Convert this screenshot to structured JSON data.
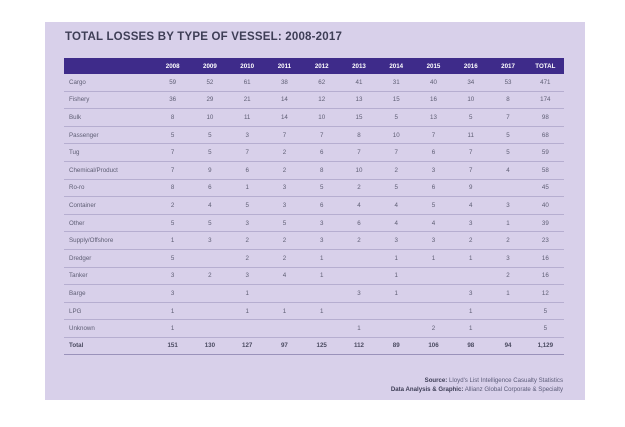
{
  "title": "TOTAL LOSSES BY TYPE OF VESSEL: 2008-2017",
  "chart_data": {
    "type": "table",
    "title": "TOTAL LOSSES BY TYPE OF VESSEL: 2008-2017",
    "columns": [
      "",
      "2008",
      "2009",
      "2010",
      "2011",
      "2012",
      "2013",
      "2014",
      "2015",
      "2016",
      "2017",
      "TOTAL"
    ],
    "rows": [
      {
        "vessel": "Cargo",
        "values": [
          "59",
          "52",
          "61",
          "38",
          "62",
          "41",
          "31",
          "40",
          "34",
          "53",
          "471"
        ]
      },
      {
        "vessel": "Fishery",
        "values": [
          "36",
          "29",
          "21",
          "14",
          "12",
          "13",
          "15",
          "16",
          "10",
          "8",
          "174"
        ]
      },
      {
        "vessel": "Bulk",
        "values": [
          "8",
          "10",
          "11",
          "14",
          "10",
          "15",
          "5",
          "13",
          "5",
          "7",
          "98"
        ]
      },
      {
        "vessel": "Passenger",
        "values": [
          "5",
          "5",
          "3",
          "7",
          "7",
          "8",
          "10",
          "7",
          "11",
          "5",
          "68"
        ]
      },
      {
        "vessel": "Tug",
        "values": [
          "7",
          "5",
          "7",
          "2",
          "6",
          "7",
          "7",
          "6",
          "7",
          "5",
          "59"
        ]
      },
      {
        "vessel": "Chemical/Product",
        "values": [
          "7",
          "9",
          "6",
          "2",
          "8",
          "10",
          "2",
          "3",
          "7",
          "4",
          "58"
        ]
      },
      {
        "vessel": "Ro-ro",
        "values": [
          "8",
          "6",
          "1",
          "3",
          "5",
          "2",
          "5",
          "6",
          "9",
          "",
          "45"
        ]
      },
      {
        "vessel": "Container",
        "values": [
          "2",
          "4",
          "5",
          "3",
          "6",
          "4",
          "4",
          "5",
          "4",
          "3",
          "40"
        ]
      },
      {
        "vessel": "Other",
        "values": [
          "5",
          "5",
          "3",
          "5",
          "3",
          "6",
          "4",
          "4",
          "3",
          "1",
          "39"
        ]
      },
      {
        "vessel": "Supply/Offshore",
        "values": [
          "1",
          "3",
          "2",
          "2",
          "3",
          "2",
          "3",
          "3",
          "2",
          "2",
          "23"
        ]
      },
      {
        "vessel": "Dredger",
        "values": [
          "5",
          "",
          "2",
          "2",
          "1",
          "",
          "1",
          "1",
          "1",
          "3",
          "16"
        ]
      },
      {
        "vessel": "Tanker",
        "values": [
          "3",
          "2",
          "3",
          "4",
          "1",
          "",
          "1",
          "",
          "",
          "2",
          "16"
        ]
      },
      {
        "vessel": "Barge",
        "values": [
          "3",
          "",
          "1",
          "",
          "",
          "3",
          "1",
          "",
          "3",
          "1",
          "12"
        ]
      },
      {
        "vessel": "LPG",
        "values": [
          "1",
          "",
          "1",
          "1",
          "1",
          "",
          "",
          "",
          "1",
          "",
          "5"
        ]
      },
      {
        "vessel": "Unknown",
        "values": [
          "1",
          "",
          "",
          "",
          "",
          "1",
          "",
          "2",
          "1",
          "",
          "5"
        ]
      }
    ],
    "total_row": {
      "vessel": "Total",
      "values": [
        "151",
        "130",
        "127",
        "97",
        "125",
        "112",
        "89",
        "106",
        "98",
        "94",
        "1,129"
      ]
    }
  },
  "source": {
    "source_label": "Source:",
    "source_text": "Lloyd's List Intelligence Casualty Statistics",
    "analysis_label": "Data Analysis & Graphic:",
    "analysis_text": "Allianz Global Corporate & Specialty"
  },
  "colors": {
    "panel_background": "#d8d0ea",
    "header_background": "#3e2b8a",
    "title_text": "#3e3e56"
  }
}
